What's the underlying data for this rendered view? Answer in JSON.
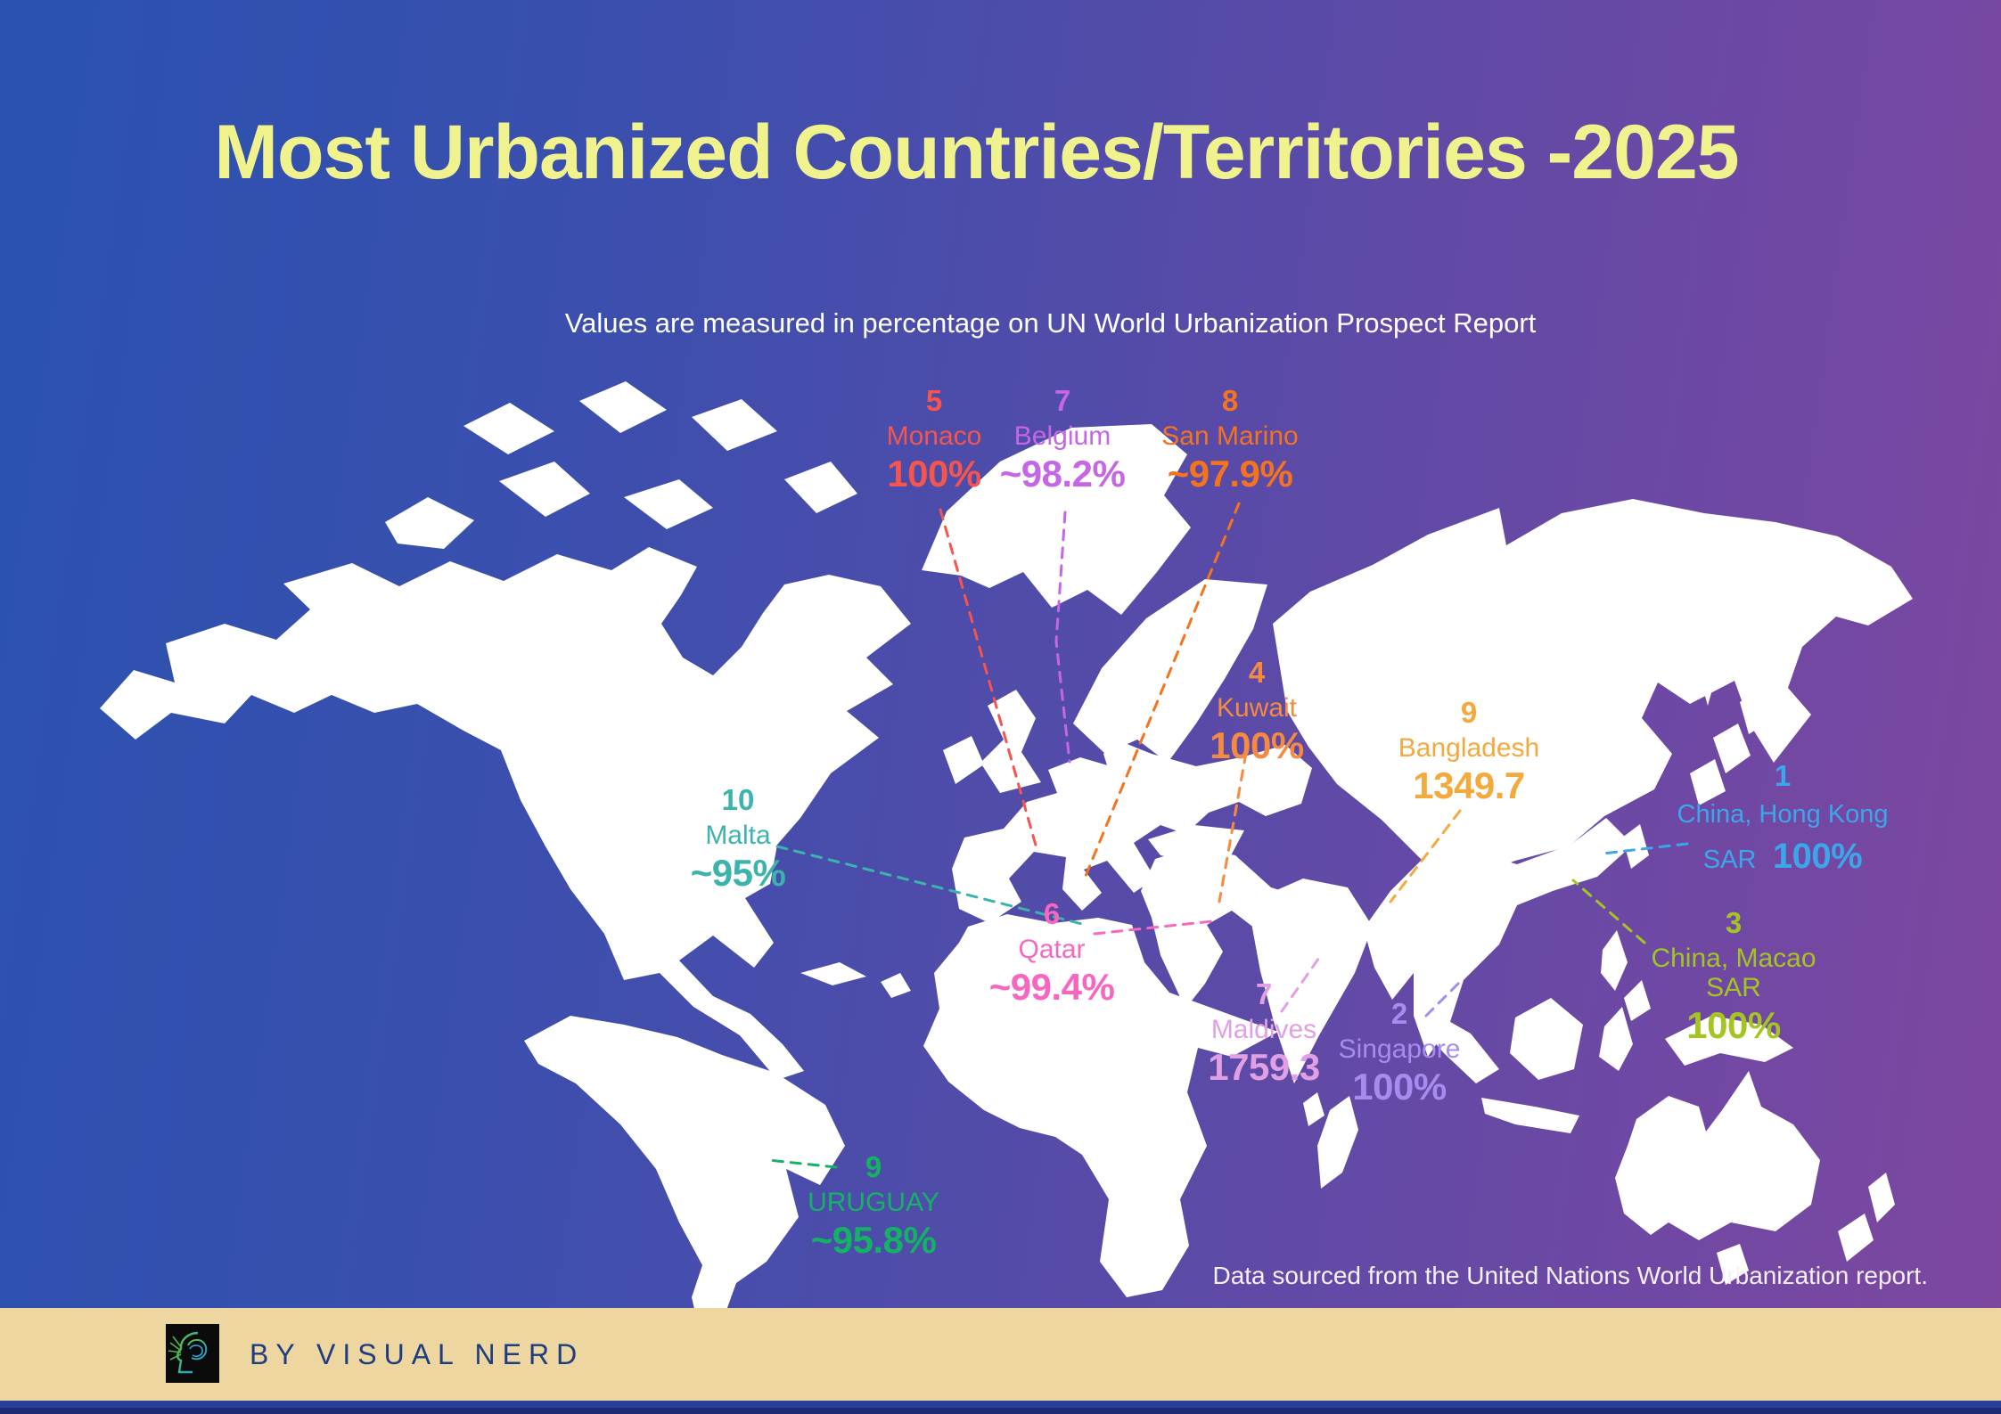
{
  "title": "Most Urbanized Countries/Territories -2025",
  "subtitle": "Values are measured in percentage on UN World Urbanization Prospect Report",
  "source_note": "Data sourced from the United Nations World Urbanization report.",
  "footer": {
    "byline": "BY VISUAL NERD",
    "logo": "visual-nerd-brain-logo"
  },
  "colors": {
    "background_left": "#2a52b0",
    "background_right": "#7e47a0",
    "map_land": "#ffffff",
    "title_text": "#f0f38d",
    "subtitle_text": "#ffffff",
    "footer_band": "#edd69f",
    "footer_text": "#1d3d80",
    "bottom_strip": "#2c3e9c"
  },
  "chart_data": {
    "type": "table",
    "title": "Most Urbanized Countries/Territories -2025",
    "description": "Ranked callouts on a world map; values are urbanization percentages from the UN World Urbanization Prospect Report",
    "columns": [
      "rank",
      "territory",
      "value"
    ],
    "entries": [
      {
        "id": "hongkong",
        "rank": "1",
        "name": "China, Hong Kong SAR",
        "value": "100%",
        "color": "#3ba7ea"
      },
      {
        "id": "singapore",
        "rank": "2",
        "name": "Singapore",
        "value": "100%",
        "color": "#a78cf0"
      },
      {
        "id": "macao",
        "rank": "3",
        "name": "China, Macao SAR",
        "value": "100%",
        "color": "#a4c521"
      },
      {
        "id": "kuwait",
        "rank": "4",
        "name": "Kuwait",
        "value": "100%",
        "color": "#f58b41"
      },
      {
        "id": "monaco",
        "rank": "5",
        "name": "Monaco",
        "value": "100%",
        "color": "#f5554e"
      },
      {
        "id": "qatar",
        "rank": "6",
        "name": "Qatar",
        "value": "~99.4%",
        "color": "#f966c0"
      },
      {
        "id": "belgium",
        "rank": "7",
        "name": "Belgium",
        "value": "~98.2%",
        "color": "#c466e6"
      },
      {
        "id": "maldives",
        "rank": "7",
        "name": "Maldives",
        "value": "1759.3",
        "color": "#e1a0e3"
      },
      {
        "id": "sanmarino",
        "rank": "8",
        "name": "San Marino",
        "value": "~97.9%",
        "color": "#f4731f"
      },
      {
        "id": "bangladesh",
        "rank": "9",
        "name": "Bangladesh",
        "value": "1349.7",
        "color": "#f3a93c"
      },
      {
        "id": "uruguay",
        "rank": "9",
        "name": "URUGUAY",
        "value": "~95.8%",
        "color": "#13b364"
      },
      {
        "id": "malta",
        "rank": "10",
        "name": "Malta",
        "value": "~95%",
        "color": "#3cb4ab"
      }
    ]
  }
}
